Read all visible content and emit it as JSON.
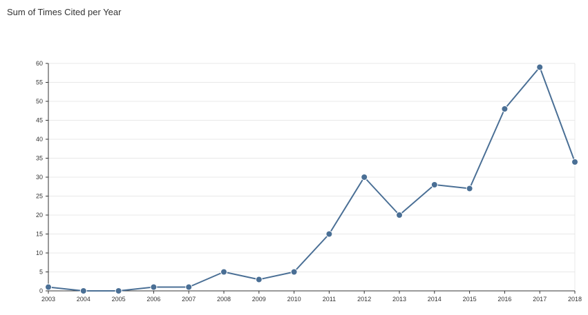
{
  "header": {
    "title": "Sum of Times Cited per Year"
  },
  "colors": {
    "line": "#4a6f95",
    "grid": "#e8e8e8",
    "axis": "#333333"
  },
  "chart_data": {
    "type": "line",
    "title": "Sum of Times Cited per Year",
    "xlabel": "",
    "ylabel": "",
    "ylim": [
      0,
      60
    ],
    "yticks": [
      0,
      5,
      10,
      15,
      20,
      25,
      30,
      35,
      40,
      45,
      50,
      55,
      60
    ],
    "grid": true,
    "x": [
      "2003",
      "2004",
      "2005",
      "2006",
      "2007",
      "2008",
      "2009",
      "2010",
      "2011",
      "2012",
      "2013",
      "2014",
      "2015",
      "2016",
      "2017",
      "2018"
    ],
    "series": [
      {
        "values": [
          1,
          0,
          0,
          1,
          1,
          5,
          3,
          5,
          15,
          30,
          20,
          28,
          27,
          48,
          59,
          34
        ]
      }
    ]
  }
}
